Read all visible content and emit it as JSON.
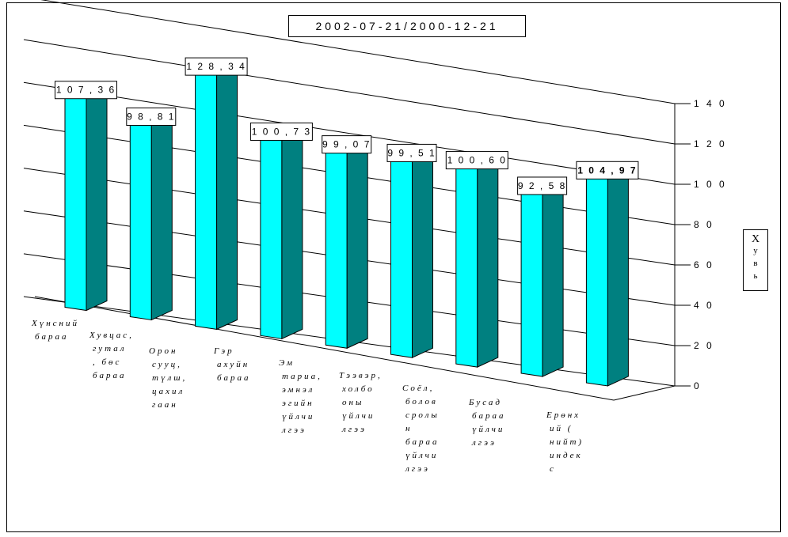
{
  "chart_data": {
    "type": "bar",
    "title": "2002-07-21/2000-12-21",
    "ylabel": "Хувь",
    "ylim": [
      0,
      140
    ],
    "yticks": [
      0,
      20,
      40,
      60,
      80,
      100,
      120,
      140
    ],
    "ytick_labels": [
      "0",
      "2 0",
      "4 0",
      "6 0",
      "8 0",
      "1 0 0",
      "1 2 0",
      "1 4 0"
    ],
    "categories": [
      [
        "Хүнсний",
        "бараа"
      ],
      [
        "Хувцас,",
        "гутал",
        ", бөс",
        "бараа"
      ],
      [
        "Орон",
        "сууц,",
        "түлш,",
        "цахил",
        "гаан"
      ],
      [
        "Гэр",
        "ахуйн",
        "бараа"
      ],
      [
        "Эм",
        "тариа,",
        "эмнэл",
        "эгийн",
        "үйлчи",
        "лгээ"
      ],
      [
        "Тээвэр,",
        "холбо",
        "оны",
        "үйлчи",
        "лгээ"
      ],
      [
        "Соёл,",
        "болов",
        "сролы",
        "н",
        "бараа",
        "үйлчи",
        "лгээ"
      ],
      [
        "Бусад",
        "бараа",
        "үйлчи",
        "лгээ"
      ],
      [
        "Ерөнх",
        "ий (",
        "нийт)",
        "индек",
        "с"
      ]
    ],
    "values": [
      107.36,
      98.81,
      128.34,
      100.73,
      99.07,
      99.51,
      100.6,
      92.58,
      104.97
    ],
    "value_labels": [
      "1 0 7 , 3 6",
      "9 8 , 8 1",
      "1 2 8 , 3 4",
      "1 0 0 , 7 3",
      "9 9 , 0 7",
      "9 9 , 5 1",
      "1 0 0 , 6 0",
      "9 2 , 5 8",
      "1 0 4 , 9 7"
    ],
    "grid": true,
    "colors": {
      "bar_front": "#00ffff",
      "bar_side": "#008080",
      "bar_top": "#00c0c0",
      "grid": "#000000"
    }
  }
}
